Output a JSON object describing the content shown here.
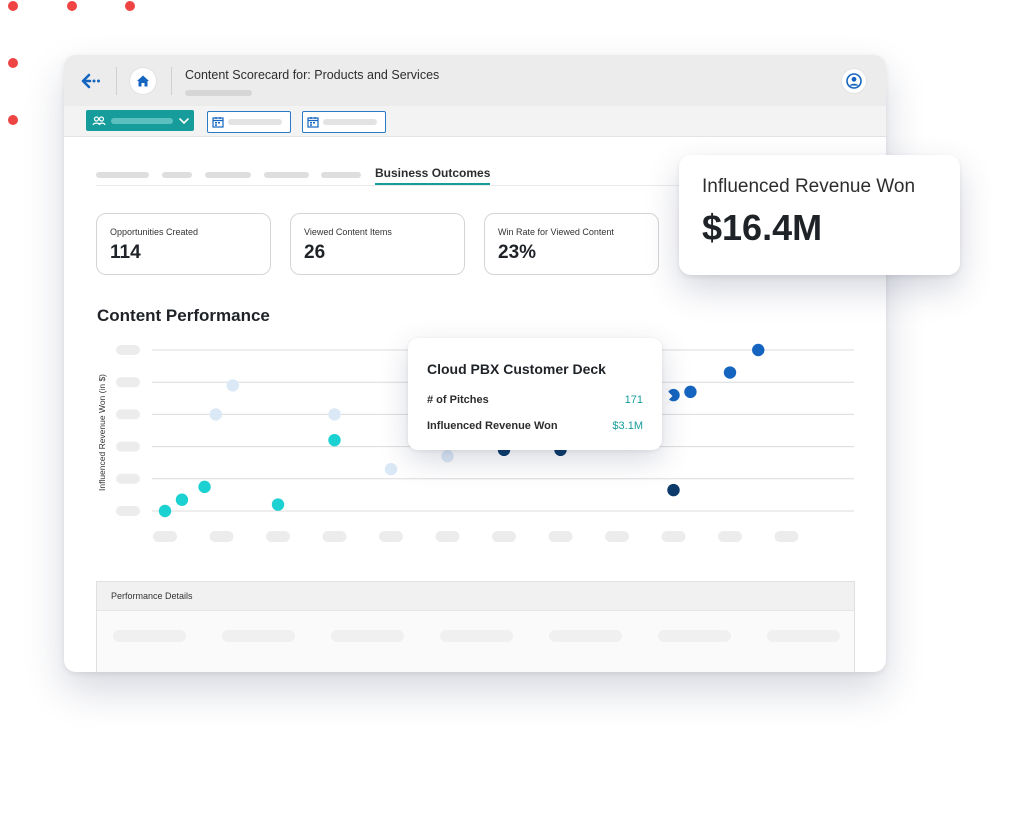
{
  "window": {
    "page_title": "Content Scorecard for: Products and Services"
  },
  "tabs": {
    "active_label": "Business Outcomes"
  },
  "kpis": [
    {
      "label": "Opportunities Created",
      "value": "114"
    },
    {
      "label": "Viewed Content Items",
      "value": "26"
    },
    {
      "label": "Win Rate for Viewed Content",
      "value": "23%"
    }
  ],
  "callout": {
    "label": "Influenced Revenue Won",
    "value": "$16.4M"
  },
  "section": {
    "title": "Content Performance"
  },
  "tooltip": {
    "title": "Cloud PBX Customer Deck",
    "rows": [
      {
        "label": "# of Pitches",
        "value": "171"
      },
      {
        "label": "Influenced Revenue Won",
        "value": "$3.1M"
      }
    ]
  },
  "details": {
    "title": "Performance Details"
  },
  "colors": {
    "teal": "#1bd1d1",
    "pale_blue": "#dbe8f6",
    "mid_blue": "#1565c0",
    "navy": "#0b3a6b",
    "accent": "#179c9c",
    "deco_red": "#ef4444"
  },
  "chart_data": {
    "type": "scatter",
    "ylabel": "Influenced Revenue Won (in $)",
    "xlabel": "",
    "y_ticks_count": 6,
    "x_ticks_count": 12,
    "points": [
      {
        "x": 1,
        "y": 0.0,
        "group": "teal"
      },
      {
        "x": 1.3,
        "y": 0.35,
        "group": "teal"
      },
      {
        "x": 1.7,
        "y": 0.75,
        "group": "teal"
      },
      {
        "x": 3,
        "y": 0.2,
        "group": "teal"
      },
      {
        "x": 4,
        "y": 2.2,
        "group": "teal"
      },
      {
        "x": 1.9,
        "y": 3.0,
        "group": "pale"
      },
      {
        "x": 2.2,
        "y": 3.9,
        "group": "pale"
      },
      {
        "x": 4,
        "y": 3.0,
        "group": "pale"
      },
      {
        "x": 5,
        "y": 1.3,
        "group": "pale"
      },
      {
        "x": 6,
        "y": 1.7,
        "group": "pale"
      },
      {
        "x": 7,
        "y": 1.9,
        "group": "navy"
      },
      {
        "x": 8,
        "y": 1.9,
        "group": "navy"
      },
      {
        "x": 10,
        "y": 0.65,
        "group": "navy"
      },
      {
        "x": 10,
        "y": 3.6,
        "group": "blue"
      },
      {
        "x": 10.3,
        "y": 3.7,
        "group": "blue"
      },
      {
        "x": 11,
        "y": 4.3,
        "group": "blue"
      },
      {
        "x": 11.5,
        "y": 5.0,
        "group": "blue"
      }
    ]
  }
}
